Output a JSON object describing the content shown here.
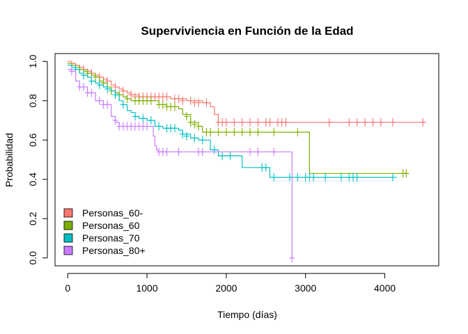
{
  "chart_data": {
    "type": "line",
    "title": "Superviviencia en Función de la Edad",
    "xlabel": "Tiempo (días)",
    "ylabel": "Probabilidad",
    "xlim": [
      -160,
      4680
    ],
    "ylim": [
      -0.04,
      1.04
    ],
    "x_ticks": [
      0,
      1000,
      2000,
      3000,
      4000
    ],
    "y_ticks": [
      0.0,
      0.2,
      0.4,
      0.6,
      0.8,
      1.0
    ],
    "x_tick_labels": [
      "0",
      "1000",
      "2000",
      "3000",
      "4000"
    ],
    "y_tick_labels": [
      "0.0",
      "0.2",
      "0.4",
      "0.6",
      "0.8",
      "1.0"
    ],
    "legend_position": "bottom-left",
    "grid": false,
    "series": [
      {
        "name": "Personas_60-",
        "color": "#F8766D",
        "steps": [
          [
            0,
            1.0
          ],
          [
            50,
            0.99
          ],
          [
            100,
            0.98
          ],
          [
            150,
            0.97
          ],
          [
            200,
            0.96
          ],
          [
            250,
            0.95
          ],
          [
            300,
            0.94
          ],
          [
            350,
            0.93
          ],
          [
            400,
            0.92
          ],
          [
            450,
            0.91
          ],
          [
            500,
            0.9
          ],
          [
            550,
            0.88
          ],
          [
            600,
            0.87
          ],
          [
            650,
            0.86
          ],
          [
            700,
            0.85
          ],
          [
            750,
            0.84
          ],
          [
            800,
            0.83
          ],
          [
            900,
            0.82
          ],
          [
            1000,
            0.82
          ],
          [
            1200,
            0.82
          ],
          [
            1300,
            0.81
          ],
          [
            1500,
            0.8
          ],
          [
            1700,
            0.79
          ],
          [
            1800,
            0.77
          ],
          [
            1850,
            0.73
          ],
          [
            1900,
            0.69
          ],
          [
            4520,
            0.69
          ]
        ],
        "censored": [
          [
            200,
            0.96
          ],
          [
            300,
            0.94
          ],
          [
            400,
            0.92
          ],
          [
            500,
            0.9
          ],
          [
            600,
            0.87
          ],
          [
            700,
            0.85
          ],
          [
            800,
            0.83
          ],
          [
            850,
            0.82
          ],
          [
            900,
            0.82
          ],
          [
            950,
            0.82
          ],
          [
            1000,
            0.82
          ],
          [
            1050,
            0.82
          ],
          [
            1100,
            0.82
          ],
          [
            1150,
            0.82
          ],
          [
            1200,
            0.82
          ],
          [
            1250,
            0.82
          ],
          [
            1350,
            0.81
          ],
          [
            1400,
            0.81
          ],
          [
            1450,
            0.8
          ],
          [
            1550,
            0.8
          ],
          [
            1600,
            0.79
          ],
          [
            1650,
            0.79
          ],
          [
            1750,
            0.79
          ],
          [
            1900,
            0.69
          ],
          [
            1950,
            0.69
          ],
          [
            2000,
            0.69
          ],
          [
            2100,
            0.69
          ],
          [
            2200,
            0.69
          ],
          [
            2300,
            0.69
          ],
          [
            2400,
            0.69
          ],
          [
            2500,
            0.69
          ],
          [
            2550,
            0.69
          ],
          [
            2650,
            0.69
          ],
          [
            2700,
            0.69
          ],
          [
            2750,
            0.69
          ],
          [
            3300,
            0.69
          ],
          [
            3550,
            0.69
          ],
          [
            3650,
            0.69
          ],
          [
            3750,
            0.69
          ],
          [
            3850,
            0.69
          ],
          [
            3950,
            0.69
          ],
          [
            4100,
            0.69
          ],
          [
            4480,
            0.69
          ]
        ]
      },
      {
        "name": "Personas_60",
        "color": "#7CAE00",
        "steps": [
          [
            0,
            0.99
          ],
          [
            50,
            0.98
          ],
          [
            100,
            0.97
          ],
          [
            150,
            0.96
          ],
          [
            200,
            0.95
          ],
          [
            250,
            0.94
          ],
          [
            300,
            0.93
          ],
          [
            350,
            0.92
          ],
          [
            400,
            0.9
          ],
          [
            450,
            0.89
          ],
          [
            500,
            0.87
          ],
          [
            550,
            0.85
          ],
          [
            600,
            0.84
          ],
          [
            650,
            0.83
          ],
          [
            700,
            0.82
          ],
          [
            750,
            0.81
          ],
          [
            800,
            0.8
          ],
          [
            1100,
            0.8
          ],
          [
            1150,
            0.78
          ],
          [
            1250,
            0.77
          ],
          [
            1400,
            0.76
          ],
          [
            1450,
            0.73
          ],
          [
            1550,
            0.69
          ],
          [
            1650,
            0.67
          ],
          [
            1700,
            0.64
          ],
          [
            3050,
            0.64
          ],
          [
            3050,
            0.43
          ],
          [
            4300,
            0.43
          ]
        ],
        "censored": [
          [
            150,
            0.96
          ],
          [
            250,
            0.94
          ],
          [
            350,
            0.92
          ],
          [
            450,
            0.89
          ],
          [
            550,
            0.85
          ],
          [
            650,
            0.83
          ],
          [
            750,
            0.81
          ],
          [
            850,
            0.8
          ],
          [
            900,
            0.8
          ],
          [
            950,
            0.8
          ],
          [
            1000,
            0.8
          ],
          [
            1050,
            0.8
          ],
          [
            1150,
            0.78
          ],
          [
            1200,
            0.78
          ],
          [
            1250,
            0.77
          ],
          [
            1300,
            0.77
          ],
          [
            1350,
            0.77
          ],
          [
            1500,
            0.72
          ],
          [
            1550,
            0.69
          ],
          [
            1600,
            0.68
          ],
          [
            1650,
            0.67
          ],
          [
            1750,
            0.64
          ],
          [
            1800,
            0.64
          ],
          [
            1900,
            0.64
          ],
          [
            2000,
            0.64
          ],
          [
            2100,
            0.64
          ],
          [
            2200,
            0.64
          ],
          [
            2300,
            0.64
          ],
          [
            2400,
            0.64
          ],
          [
            2600,
            0.64
          ],
          [
            2900,
            0.64
          ],
          [
            4230,
            0.43
          ],
          [
            4270,
            0.43
          ]
        ]
      },
      {
        "name": "Personas_70",
        "color": "#00BFC4",
        "steps": [
          [
            0,
            0.98
          ],
          [
            50,
            0.97
          ],
          [
            100,
            0.96
          ],
          [
            150,
            0.94
          ],
          [
            200,
            0.93
          ],
          [
            250,
            0.92
          ],
          [
            300,
            0.9
          ],
          [
            350,
            0.89
          ],
          [
            400,
            0.88
          ],
          [
            450,
            0.87
          ],
          [
            500,
            0.86
          ],
          [
            550,
            0.85
          ],
          [
            600,
            0.83
          ],
          [
            650,
            0.8
          ],
          [
            700,
            0.78
          ],
          [
            750,
            0.75
          ],
          [
            800,
            0.74
          ],
          [
            850,
            0.72
          ],
          [
            900,
            0.71
          ],
          [
            1000,
            0.7
          ],
          [
            1100,
            0.67
          ],
          [
            1200,
            0.66
          ],
          [
            1400,
            0.65
          ],
          [
            1450,
            0.63
          ],
          [
            1550,
            0.61
          ],
          [
            1650,
            0.6
          ],
          [
            1800,
            0.55
          ],
          [
            1900,
            0.52
          ],
          [
            2150,
            0.52
          ],
          [
            2200,
            0.46
          ],
          [
            2500,
            0.46
          ],
          [
            2550,
            0.41
          ],
          [
            4150,
            0.41
          ]
        ],
        "censored": [
          [
            100,
            0.96
          ],
          [
            200,
            0.93
          ],
          [
            300,
            0.9
          ],
          [
            400,
            0.88
          ],
          [
            500,
            0.86
          ],
          [
            600,
            0.83
          ],
          [
            700,
            0.78
          ],
          [
            850,
            0.72
          ],
          [
            950,
            0.71
          ],
          [
            1050,
            0.7
          ],
          [
            1150,
            0.67
          ],
          [
            1250,
            0.66
          ],
          [
            1300,
            0.66
          ],
          [
            1350,
            0.66
          ],
          [
            1450,
            0.63
          ],
          [
            1500,
            0.62
          ],
          [
            1600,
            0.61
          ],
          [
            1700,
            0.6
          ],
          [
            1850,
            0.55
          ],
          [
            1950,
            0.52
          ],
          [
            2050,
            0.52
          ],
          [
            2450,
            0.46
          ],
          [
            2500,
            0.46
          ],
          [
            2600,
            0.41
          ],
          [
            2800,
            0.41
          ],
          [
            2900,
            0.41
          ],
          [
            3000,
            0.41
          ],
          [
            3050,
            0.41
          ],
          [
            3100,
            0.41
          ],
          [
            3250,
            0.41
          ],
          [
            3450,
            0.41
          ],
          [
            3550,
            0.41
          ],
          [
            3600,
            0.41
          ],
          [
            3650,
            0.41
          ],
          [
            4100,
            0.41
          ]
        ]
      },
      {
        "name": "Personas_80+",
        "color": "#C77CFF",
        "steps": [
          [
            0,
            0.96
          ],
          [
            50,
            0.95
          ],
          [
            100,
            0.9
          ],
          [
            150,
            0.87
          ],
          [
            250,
            0.84
          ],
          [
            350,
            0.8
          ],
          [
            450,
            0.78
          ],
          [
            550,
            0.72
          ],
          [
            600,
            0.69
          ],
          [
            650,
            0.67
          ],
          [
            1050,
            0.67
          ],
          [
            1080,
            0.62
          ],
          [
            1100,
            0.57
          ],
          [
            1120,
            0.55
          ],
          [
            1150,
            0.54
          ],
          [
            2830,
            0.54
          ],
          [
            2830,
            0.0
          ]
        ],
        "censored": [
          [
            50,
            0.95
          ],
          [
            150,
            0.87
          ],
          [
            200,
            0.87
          ],
          [
            250,
            0.84
          ],
          [
            300,
            0.84
          ],
          [
            400,
            0.8
          ],
          [
            450,
            0.78
          ],
          [
            500,
            0.78
          ],
          [
            600,
            0.7
          ],
          [
            650,
            0.67
          ],
          [
            700,
            0.67
          ],
          [
            750,
            0.67
          ],
          [
            800,
            0.67
          ],
          [
            850,
            0.67
          ],
          [
            900,
            0.67
          ],
          [
            950,
            0.67
          ],
          [
            1000,
            0.67
          ],
          [
            1150,
            0.54
          ],
          [
            1200,
            0.54
          ],
          [
            1250,
            0.54
          ],
          [
            1400,
            0.54
          ],
          [
            1650,
            0.54
          ],
          [
            1700,
            0.54
          ],
          [
            2300,
            0.54
          ],
          [
            2400,
            0.54
          ],
          [
            2600,
            0.54
          ],
          [
            2830,
            0.0
          ]
        ]
      }
    ]
  }
}
